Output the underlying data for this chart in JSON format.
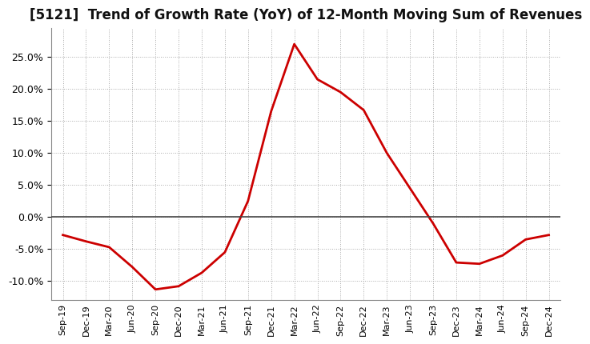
{
  "title": "[5121]  Trend of Growth Rate (YoY) of 12-Month Moving Sum of Revenues",
  "title_fontsize": 12,
  "line_color": "#cc0000",
  "line_width": 2.0,
  "background_color": "#ffffff",
  "grid_color": "#aaaaaa",
  "zero_line_color": "#444444",
  "xlabels": [
    "Sep-19",
    "Dec-19",
    "Mar-20",
    "Jun-20",
    "Sep-20",
    "Dec-20",
    "Mar-21",
    "Jun-21",
    "Sep-21",
    "Dec-21",
    "Mar-22",
    "Jun-22",
    "Sep-22",
    "Dec-22",
    "Mar-23",
    "Jun-23",
    "Sep-23",
    "Dec-23",
    "Mar-24",
    "Jun-24",
    "Sep-24",
    "Dec-24"
  ],
  "yvalues": [
    -0.028,
    -0.038,
    -0.047,
    -0.078,
    -0.113,
    -0.108,
    -0.087,
    -0.055,
    0.025,
    0.165,
    0.27,
    0.215,
    0.195,
    0.167,
    0.1,
    0.045,
    -0.01,
    -0.071,
    -0.073,
    -0.06,
    -0.035,
    -0.028
  ],
  "ylim": [
    -0.13,
    0.295
  ],
  "yticks": [
    -0.1,
    -0.05,
    0.0,
    0.05,
    0.1,
    0.15,
    0.2,
    0.25
  ]
}
